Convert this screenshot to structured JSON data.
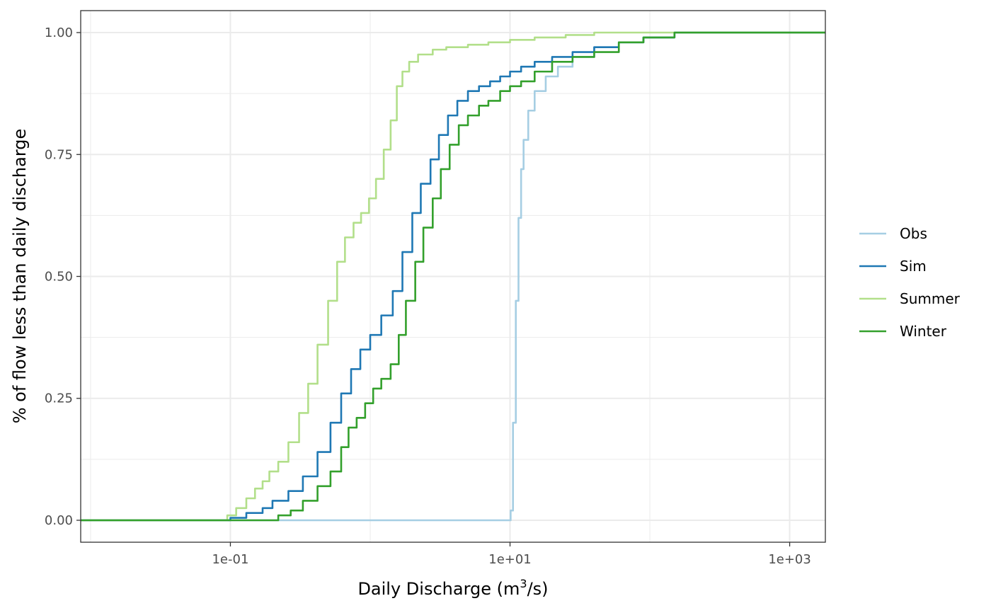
{
  "chart_data": {
    "type": "line",
    "xlabel": "Daily Discharge (m",
    "xlabel_sup": "3",
    "xlabel_end": "/s)",
    "ylabel": "% of flow less than daily discharge",
    "x_scale": "log10",
    "xlim": [
      0.0085,
      1800
    ],
    "ylim": [
      -0.045,
      1.045
    ],
    "x_ticks": [
      {
        "value": 0.1,
        "label": "1e-01"
      },
      {
        "value": 10,
        "label": "1e+01"
      },
      {
        "value": 1000,
        "label": "1e+03"
      }
    ],
    "y_ticks": [
      {
        "value": 0,
        "label": "0.00"
      },
      {
        "value": 0.25,
        "label": "0.25"
      },
      {
        "value": 0.5,
        "label": "0.50"
      },
      {
        "value": 0.75,
        "label": "0.75"
      },
      {
        "value": 1,
        "label": "1.00"
      }
    ],
    "grid": true,
    "legend_position": "right",
    "series": [
      {
        "name": "Obs",
        "color": "#a6cee3",
        "points": [
          [
            0.0085,
            0
          ],
          [
            10,
            0
          ],
          [
            10.1,
            0.02
          ],
          [
            10.5,
            0.2
          ],
          [
            11,
            0.45
          ],
          [
            11.5,
            0.62
          ],
          [
            12,
            0.72
          ],
          [
            12.5,
            0.78
          ],
          [
            13.5,
            0.84
          ],
          [
            15,
            0.88
          ],
          [
            18,
            0.91
          ],
          [
            22,
            0.93
          ],
          [
            28,
            0.95
          ],
          [
            40,
            0.97
          ],
          [
            60,
            0.98
          ],
          [
            90,
            0.99
          ],
          [
            150,
            1
          ],
          [
            1800,
            1
          ]
        ]
      },
      {
        "name": "Sim",
        "color": "#1f78b4",
        "points": [
          [
            0.0085,
            0
          ],
          [
            0.085,
            0
          ],
          [
            0.1,
            0.005
          ],
          [
            0.13,
            0.015
          ],
          [
            0.17,
            0.025
          ],
          [
            0.2,
            0.04
          ],
          [
            0.26,
            0.06
          ],
          [
            0.33,
            0.09
          ],
          [
            0.42,
            0.14
          ],
          [
            0.52,
            0.2
          ],
          [
            0.62,
            0.26
          ],
          [
            0.73,
            0.31
          ],
          [
            0.85,
            0.35
          ],
          [
            1,
            0.38
          ],
          [
            1.2,
            0.42
          ],
          [
            1.45,
            0.47
          ],
          [
            1.7,
            0.55
          ],
          [
            2,
            0.63
          ],
          [
            2.3,
            0.69
          ],
          [
            2.7,
            0.74
          ],
          [
            3.1,
            0.79
          ],
          [
            3.6,
            0.83
          ],
          [
            4.2,
            0.86
          ],
          [
            5,
            0.88
          ],
          [
            6,
            0.89
          ],
          [
            7.2,
            0.9
          ],
          [
            8.5,
            0.91
          ],
          [
            10,
            0.92
          ],
          [
            12,
            0.93
          ],
          [
            15,
            0.94
          ],
          [
            20,
            0.95
          ],
          [
            28,
            0.96
          ],
          [
            40,
            0.97
          ],
          [
            60,
            0.98
          ],
          [
            90,
            0.99
          ],
          [
            150,
            1
          ],
          [
            1800,
            1
          ]
        ]
      },
      {
        "name": "Summer",
        "color": "#b2df8a",
        "points": [
          [
            0.0085,
            0
          ],
          [
            0.085,
            0
          ],
          [
            0.095,
            0.01
          ],
          [
            0.11,
            0.025
          ],
          [
            0.13,
            0.045
          ],
          [
            0.15,
            0.065
          ],
          [
            0.17,
            0.08
          ],
          [
            0.19,
            0.1
          ],
          [
            0.22,
            0.12
          ],
          [
            0.26,
            0.16
          ],
          [
            0.31,
            0.22
          ],
          [
            0.36,
            0.28
          ],
          [
            0.42,
            0.36
          ],
          [
            0.5,
            0.45
          ],
          [
            0.58,
            0.53
          ],
          [
            0.66,
            0.58
          ],
          [
            0.76,
            0.61
          ],
          [
            0.86,
            0.63
          ],
          [
            0.98,
            0.66
          ],
          [
            1.1,
            0.7
          ],
          [
            1.25,
            0.76
          ],
          [
            1.4,
            0.82
          ],
          [
            1.55,
            0.89
          ],
          [
            1.7,
            0.92
          ],
          [
            1.9,
            0.94
          ],
          [
            2.2,
            0.955
          ],
          [
            2.8,
            0.965
          ],
          [
            3.5,
            0.97
          ],
          [
            5,
            0.975
          ],
          [
            7,
            0.98
          ],
          [
            10,
            0.985
          ],
          [
            15,
            0.99
          ],
          [
            25,
            0.995
          ],
          [
            40,
            1
          ],
          [
            1800,
            1
          ]
        ]
      },
      {
        "name": "Winter",
        "color": "#33a02c",
        "points": [
          [
            0.0085,
            0
          ],
          [
            0.19,
            0
          ],
          [
            0.22,
            0.01
          ],
          [
            0.27,
            0.02
          ],
          [
            0.33,
            0.04
          ],
          [
            0.42,
            0.07
          ],
          [
            0.52,
            0.1
          ],
          [
            0.62,
            0.15
          ],
          [
            0.7,
            0.19
          ],
          [
            0.8,
            0.21
          ],
          [
            0.92,
            0.24
          ],
          [
            1.05,
            0.27
          ],
          [
            1.2,
            0.29
          ],
          [
            1.4,
            0.32
          ],
          [
            1.6,
            0.38
          ],
          [
            1.8,
            0.45
          ],
          [
            2.1,
            0.53
          ],
          [
            2.4,
            0.6
          ],
          [
            2.8,
            0.66
          ],
          [
            3.2,
            0.72
          ],
          [
            3.7,
            0.77
          ],
          [
            4.3,
            0.81
          ],
          [
            5,
            0.83
          ],
          [
            6,
            0.85
          ],
          [
            7,
            0.86
          ],
          [
            8.5,
            0.88
          ],
          [
            10,
            0.89
          ],
          [
            12,
            0.9
          ],
          [
            15,
            0.92
          ],
          [
            20,
            0.94
          ],
          [
            28,
            0.95
          ],
          [
            40,
            0.96
          ],
          [
            60,
            0.98
          ],
          [
            90,
            0.99
          ],
          [
            150,
            1
          ],
          [
            1800,
            1
          ]
        ]
      }
    ]
  }
}
